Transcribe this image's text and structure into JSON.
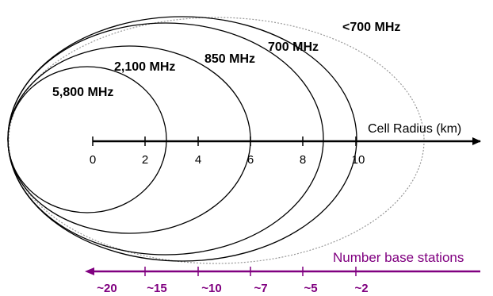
{
  "diagram": {
    "colors": {
      "ellipse": "#000000",
      "outer_ellipse": "#999999",
      "axis": "#000000",
      "base_stations": "#800080"
    },
    "frequency_bands": [
      {
        "label": "5,800 MHz",
        "max_radius_km": 2.75
      },
      {
        "label": "2,100 MHz",
        "max_radius_km": 5.7
      },
      {
        "label": "850 MHz",
        "max_radius_km": 8.8
      },
      {
        "label": "700 MHz",
        "max_radius_km": 10
      },
      {
        "label": "<700 MHz",
        "max_radius_km": 13.1,
        "dashed": true
      }
    ],
    "cell_radius_axis": {
      "title": "Cell Radius (km)",
      "ticks": [
        "0",
        "2",
        "4",
        "6",
        "8",
        "10"
      ]
    },
    "base_station_axis": {
      "title": "Number base stations",
      "ticks": [
        "~20",
        "~15",
        "~10",
        "~7",
        "~5",
        "~2"
      ]
    }
  }
}
